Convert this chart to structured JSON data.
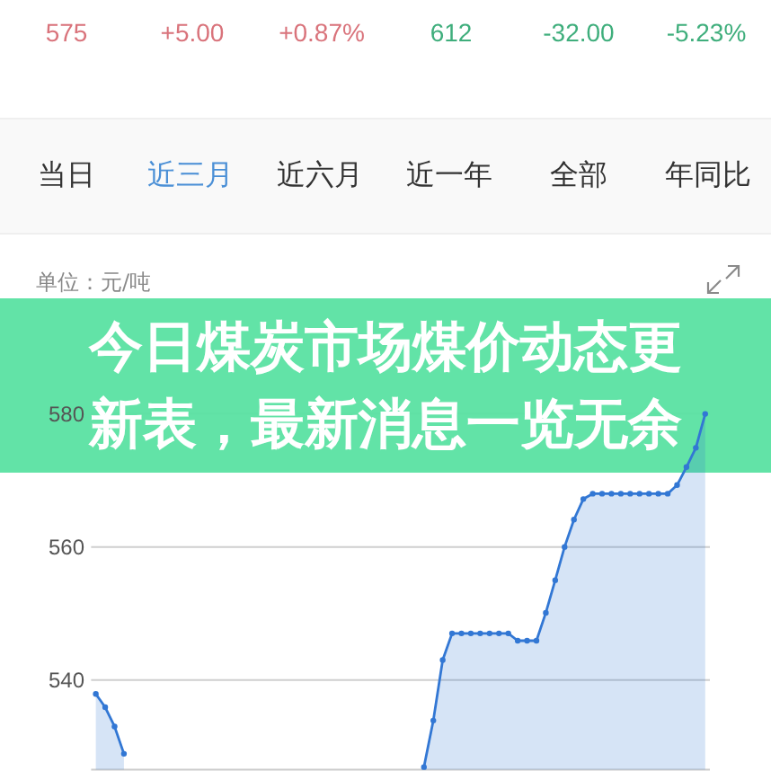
{
  "chart_data": {
    "type": "area",
    "title": "今日煤炭市场煤价动态更新表，最新消息一览无余",
    "ylabel": "单位：元/吨",
    "annotations": [
      "575",
      "+5.00",
      "+0.87%",
      "612",
      "-32.00",
      "-5.23%",
      "当日",
      "近三月",
      "近六月",
      "近一年",
      "全部",
      "年同比"
    ],
    "categories": [
      null,
      null,
      null,
      null,
      null,
      null,
      null,
      null,
      null,
      null,
      null,
      null,
      null,
      null,
      null,
      null,
      null,
      null,
      null,
      null,
      null,
      null,
      null,
      null,
      null,
      null,
      null,
      null,
      null,
      null,
      null,
      null,
      null,
      null,
      null,
      null,
      null,
      null,
      null,
      null,
      null,
      null,
      null,
      null,
      null,
      null,
      null,
      null,
      null,
      null,
      null,
      null,
      null,
      null,
      null,
      null,
      null,
      null,
      null,
      null,
      null,
      null,
      null,
      null,
      null,
      null
    ],
    "values": [
      537.9,
      535.9,
      533.0,
      528.9,
      null,
      null,
      null,
      null,
      null,
      null,
      null,
      null,
      null,
      null,
      null,
      null,
      null,
      null,
      null,
      null,
      null,
      null,
      null,
      null,
      null,
      null,
      null,
      null,
      null,
      null,
      null,
      null,
      null,
      null,
      null,
      526.9,
      533.9,
      543.0,
      547.0,
      547.0,
      547.0,
      547.0,
      547.0,
      547.0,
      547.0,
      545.9,
      545.9,
      545.9,
      550.1,
      555.0,
      560.0,
      564.1,
      567.2,
      568.0,
      568.0,
      568.0,
      568.0,
      568.0,
      568.0,
      568.0,
      568.0,
      568.0,
      569.3,
      572.0,
      574.9,
      580.0
    ],
    "color": "#3277d4",
    "ylim": [
      526.5,
      580
    ],
    "yticks": [
      540,
      560,
      580
    ],
    "grid": "y",
    "marker": "circle",
    "tick_labels": "y"
  }
}
